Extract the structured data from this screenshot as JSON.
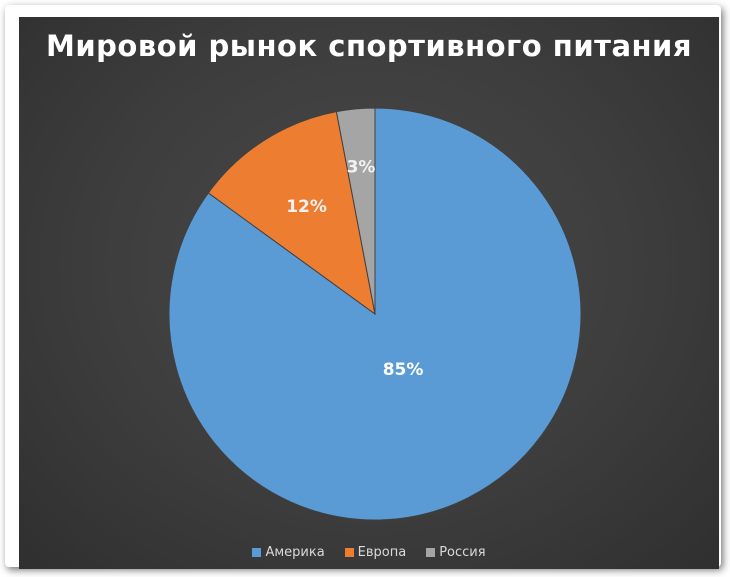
{
  "chart_data": {
    "type": "pie",
    "title": "Мировой рынок спортивного питания",
    "categories": [
      "Америка",
      "Европа",
      "Россия"
    ],
    "values": [
      85,
      12,
      3
    ],
    "labels": [
      "85%",
      "12%",
      "3%"
    ],
    "colors": [
      "#5b9bd5",
      "#ed7d31",
      "#a5a5a5"
    ],
    "legend_position": "bottom"
  }
}
